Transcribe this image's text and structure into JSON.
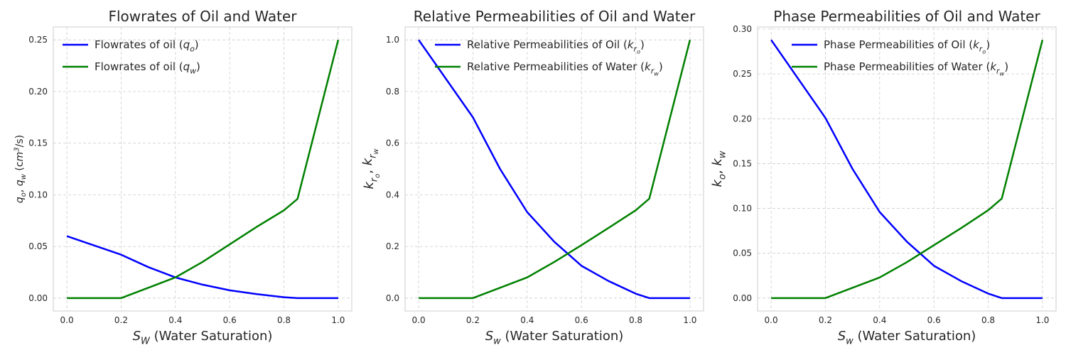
{
  "chart_data": [
    {
      "type": "line",
      "title": "Flowrates of Oil and Water",
      "xlabel": "S_W (Water Saturation)",
      "ylabel": "q_o, q_w (cm^3/s)",
      "xlim": [
        -0.05,
        1.05
      ],
      "ylim": [
        -0.0125,
        0.2625
      ],
      "x_ticks": [
        "0.0",
        "0.2",
        "0.4",
        "0.6",
        "0.8",
        "1.0"
      ],
      "y_ticks": [
        "0.00",
        "0.05",
        "0.10",
        "0.15",
        "0.20",
        "0.25"
      ],
      "grid": true,
      "legend_position": "top-left",
      "x": [
        0.0,
        0.2,
        0.3,
        0.4,
        0.5,
        0.6,
        0.7,
        0.8,
        0.85,
        1.0
      ],
      "series": [
        {
          "name": "Flowrates of oil (q_o)",
          "color": "#0000ff",
          "values": [
            0.06,
            0.042,
            0.03,
            0.02,
            0.013,
            0.0075,
            0.0038,
            0.0008,
            0.0,
            0.0
          ]
        },
        {
          "name": "Flowrates of oil (q_w)",
          "color": "#008000",
          "values": [
            0.0,
            0.0,
            0.01,
            0.02,
            0.035,
            0.052,
            0.069,
            0.085,
            0.096,
            0.25
          ]
        }
      ]
    },
    {
      "type": "line",
      "title": "Relative Permeabilities of Oil and Water",
      "xlabel": "S_w (Water Saturation)",
      "ylabel": "k_{r_o}, k_{r_w}",
      "xlim": [
        -0.05,
        1.05
      ],
      "ylim": [
        -0.05,
        1.05
      ],
      "x_ticks": [
        "0.0",
        "0.2",
        "0.4",
        "0.6",
        "0.8",
        "1.0"
      ],
      "y_ticks": [
        "0.0",
        "0.2",
        "0.4",
        "0.6",
        "0.8",
        "1.0"
      ],
      "grid": true,
      "legend_position": "top-center",
      "x": [
        0.0,
        0.2,
        0.3,
        0.4,
        0.5,
        0.6,
        0.7,
        0.8,
        0.85,
        1.0
      ],
      "series": [
        {
          "name": "Relative Permeabilities of Oil (k_{r_o})",
          "color": "#0000ff",
          "values": [
            1.0,
            0.7,
            0.5,
            0.333,
            0.218,
            0.125,
            0.066,
            0.017,
            0.0,
            0.0
          ]
        },
        {
          "name": "Relative Permeabilities of Water (k_{r_w})",
          "color": "#008000",
          "values": [
            0.0,
            0.0,
            0.04,
            0.08,
            0.14,
            0.205,
            0.272,
            0.34,
            0.385,
            1.0
          ]
        }
      ]
    },
    {
      "type": "line",
      "title": "Phase Permeabilities of Oil and Water",
      "xlabel": "S_w (Water Saturation)",
      "ylabel": "k_o, k_w",
      "xlim": [
        -0.05,
        1.05
      ],
      "ylim": [
        -0.0144,
        0.3024
      ],
      "x_ticks": [
        "0.0",
        "0.2",
        "0.4",
        "0.6",
        "0.8",
        "1.0"
      ],
      "y_ticks": [
        "0.00",
        "0.05",
        "0.10",
        "0.15",
        "0.20",
        "0.25",
        "0.30"
      ],
      "grid": true,
      "legend_position": "top-center",
      "x": [
        0.0,
        0.2,
        0.3,
        0.4,
        0.5,
        0.6,
        0.7,
        0.8,
        0.85,
        1.0
      ],
      "series": [
        {
          "name": "Phase Permeabilities of Oil (k_{r_o})",
          "color": "#0000ff",
          "values": [
            0.288,
            0.201,
            0.144,
            0.096,
            0.063,
            0.036,
            0.019,
            0.005,
            0.0,
            0.0
          ]
        },
        {
          "name": "Phase Permeabilities of Water (k_{r_w})",
          "color": "#008000",
          "values": [
            0.0,
            0.0,
            0.0115,
            0.023,
            0.04,
            0.059,
            0.078,
            0.098,
            0.111,
            0.288
          ]
        }
      ]
    }
  ]
}
